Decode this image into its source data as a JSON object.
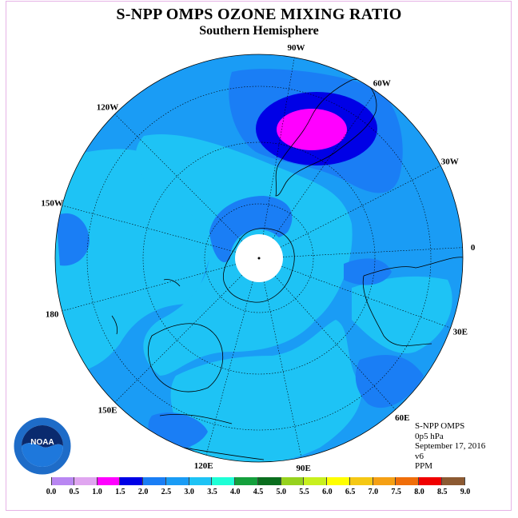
{
  "title": "S-NPP OMPS OZONE MIXING RATIO",
  "subtitle": "Southern Hemisphere",
  "info": {
    "product": "S-NPP OMPS",
    "level": "0p5 hPa",
    "date": "September 17, 2016",
    "version": "v6",
    "units": "PPM"
  },
  "longitude_labels": [
    "90W",
    "60W",
    "30W",
    "0",
    "30E",
    "60E",
    "90E",
    "120E",
    "150E",
    "180",
    "150W",
    "120W"
  ],
  "legend": {
    "ticks": [
      "0.0",
      "0.5",
      "1.0",
      "1.5",
      "2.0",
      "2.5",
      "3.0",
      "3.5",
      "4.0",
      "4.5",
      "5.0",
      "5.5",
      "6.0",
      "6.5",
      "7.0",
      "7.5",
      "8.0",
      "8.5",
      "9.0"
    ],
    "colors": [
      "#b987f2",
      "#e0a6f0",
      "#ff00ff",
      "#0000e6",
      "#1a7ef5",
      "#1a9cf5",
      "#1ec3f5",
      "#1effd6",
      "#14a03c",
      "#0a6e1e",
      "#96d21e",
      "#c8f01e",
      "#ffff00",
      "#f5c814",
      "#f5a014",
      "#f06e0a",
      "#f00000",
      "#8c5a32"
    ]
  },
  "map": {
    "background_color": "#1a9cf5",
    "low_ozone_color": "#1ec3f5",
    "mid_ozone_color": "#1a7ef5",
    "high_ozone_color": "#0000e6",
    "max_ozone_color": "#ff00ff",
    "polar_night_color": "#ffffff"
  },
  "logo_text": "NOAA"
}
